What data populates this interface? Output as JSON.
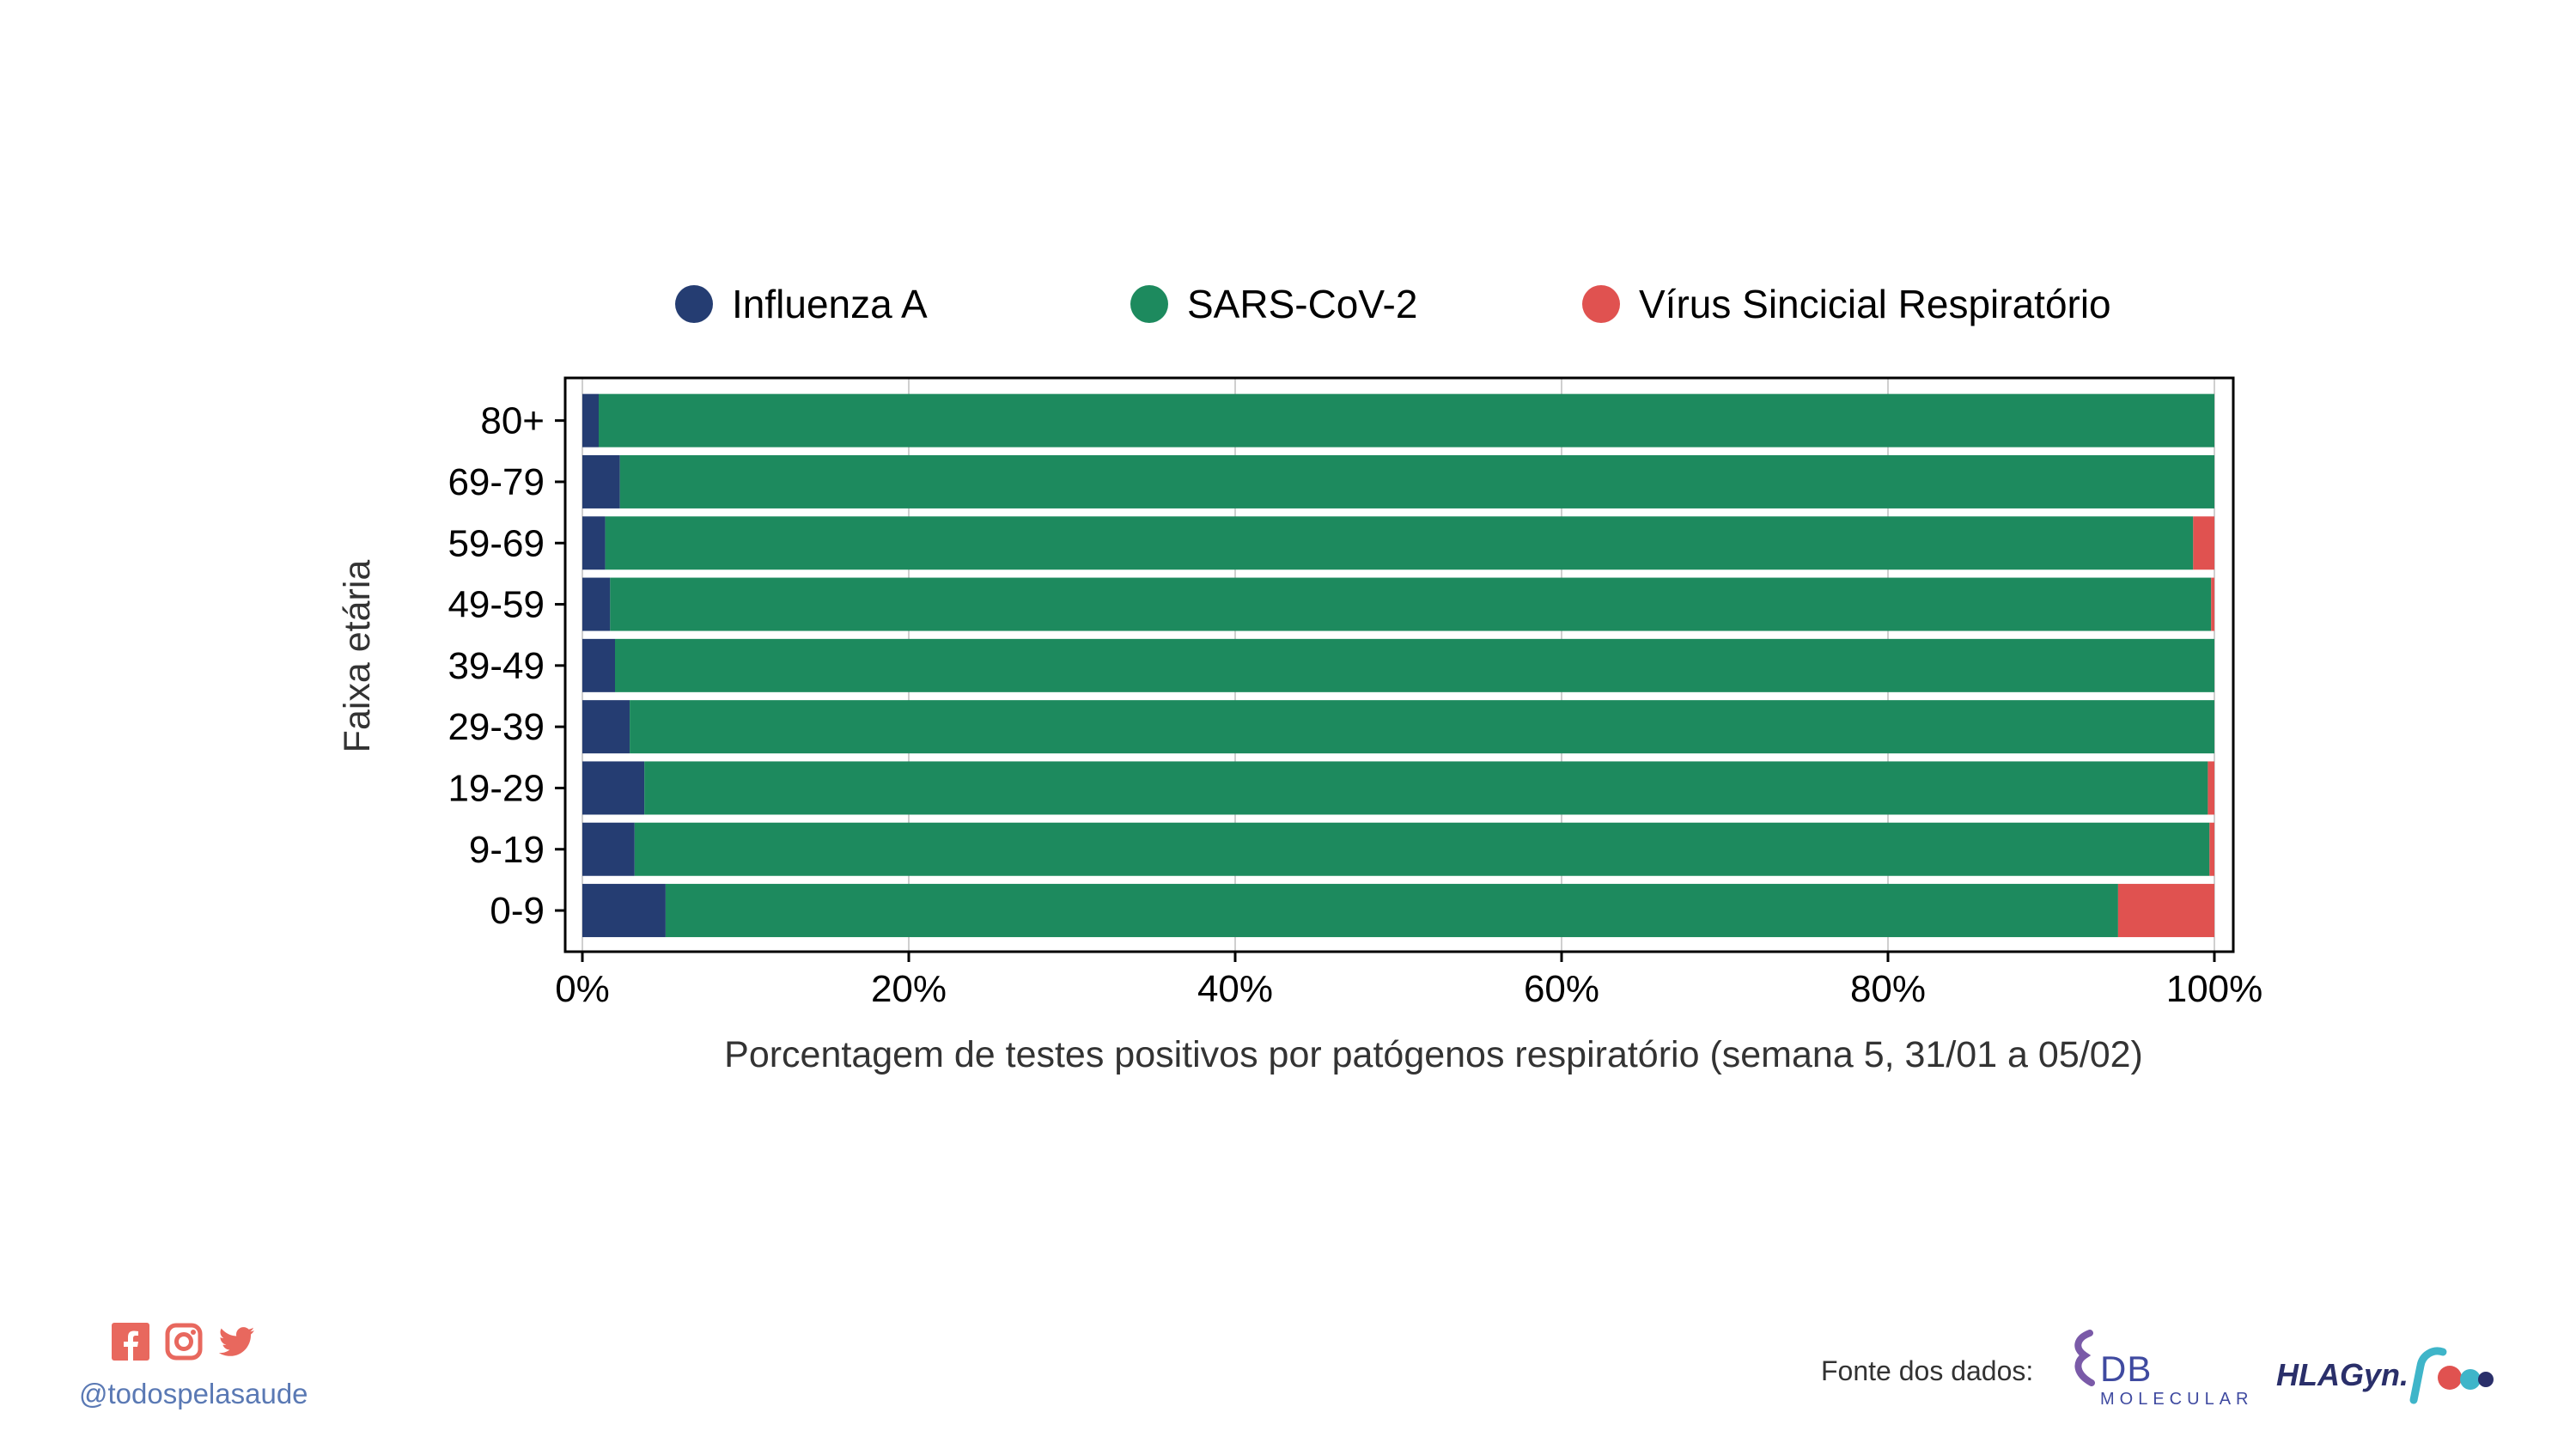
{
  "chart_data": {
    "type": "bar",
    "orientation": "horizontal",
    "stacked": true,
    "categories": [
      "80+",
      "69-79",
      "59-69",
      "49-59",
      "39-49",
      "29-39",
      "19-29",
      "9-19",
      "0-9"
    ],
    "series": [
      {
        "name": "Influenza A",
        "color": "#253d72",
        "values": [
          1.0,
          2.3,
          1.4,
          1.7,
          2.0,
          2.9,
          3.8,
          3.2,
          5.1
        ]
      },
      {
        "name": "SARS-CoV-2",
        "color": "#1d8a5e",
        "values": [
          99.0,
          97.7,
          97.3,
          98.1,
          98.0,
          97.1,
          95.8,
          96.5,
          89.0
        ]
      },
      {
        "name": "Vírus Sincicial Respiratório",
        "color": "#e05250",
        "values": [
          0.0,
          0.0,
          1.3,
          0.2,
          0.0,
          0.0,
          0.4,
          0.3,
          5.9
        ]
      }
    ],
    "xlabel": "Porcentagem de testes positivos por patógenos respiratório  (semana 5, 31/01 a 05/02)",
    "ylabel": "Faixa etária",
    "xlim": [
      0,
      100
    ],
    "xticks": [
      0,
      20,
      40,
      60,
      80,
      100
    ],
    "xtick_labels": [
      "0%",
      "20%",
      "40%",
      "60%",
      "80%",
      "100%"
    ],
    "grid": true,
    "legend_position": "top"
  },
  "footer": {
    "handle": "@todospelasaude",
    "source_label": "Fonte dos dados:",
    "social_icons": [
      "facebook-icon",
      "instagram-icon",
      "twitter-icon"
    ],
    "social_color": "#e8685e",
    "logos": {
      "db_molecular": {
        "main": "DB",
        "sub": "MOLECULAR"
      },
      "hlagyn": {
        "main": "HLAGyn."
      }
    }
  }
}
